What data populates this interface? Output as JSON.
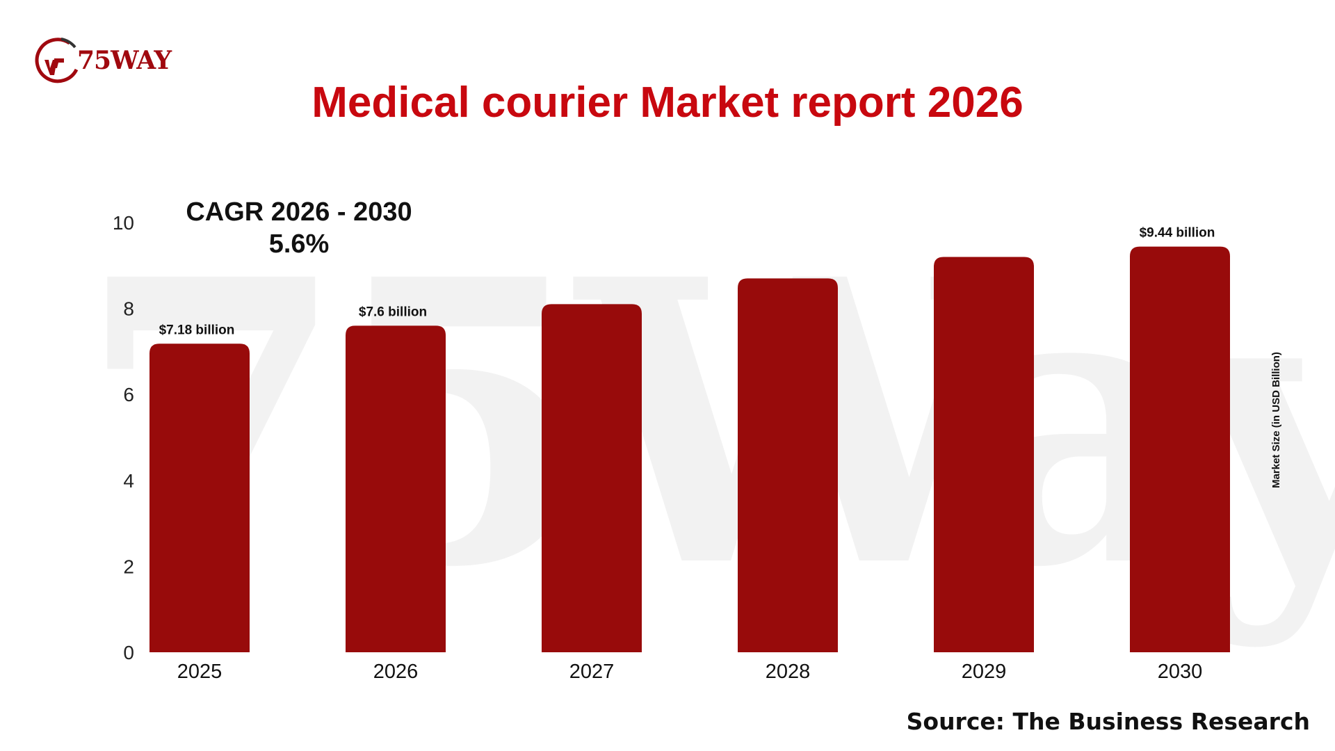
{
  "brand": {
    "name": "75WAY",
    "watermark_text": "75Way"
  },
  "title": "Medical courier Market report 2026",
  "cagr": {
    "label": "CAGR 2026 - 2030",
    "value": "5.6%"
  },
  "source": "Source: The Business Research",
  "colors": {
    "bar": "#980b0b",
    "title": "#c8080f",
    "logo_red": "#a0090f"
  },
  "chart_data": {
    "type": "bar",
    "categories": [
      "2025",
      "2026",
      "2027",
      "2028",
      "2029",
      "2030"
    ],
    "values": [
      7.18,
      7.6,
      8.1,
      8.7,
      9.2,
      9.44
    ],
    "data_labels": [
      "$7.18 billion",
      "$7.6 billion",
      "",
      "",
      "",
      "$9.44 billion"
    ],
    "ylabel": "Market Size (in USD Billion)",
    "ylim": [
      0,
      10
    ],
    "yticks": [
      0,
      2,
      4,
      6,
      8,
      10
    ],
    "grid": false,
    "legend": "none"
  }
}
